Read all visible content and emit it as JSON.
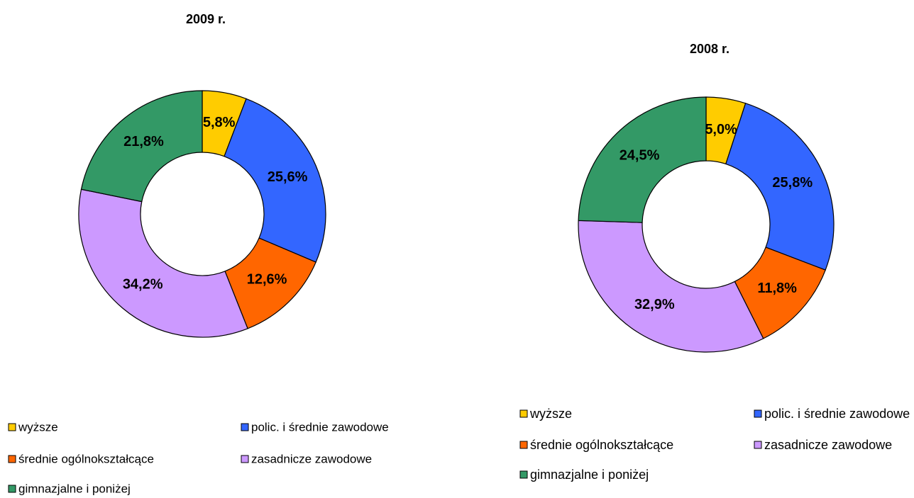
{
  "chart_data": [
    {
      "type": "donut",
      "title": "2009 r.",
      "categories": [
        "wyższe",
        "polic. i średnie zawodowe",
        "średnie ogólnokształcące",
        "zasadnicze zawodowe",
        "gimnazjalne i poniżej"
      ],
      "values": [
        5.8,
        25.6,
        12.6,
        34.2,
        21.8
      ],
      "value_labels": [
        "5,8%",
        "25,6%",
        "12,6%",
        "34,2%",
        "21,8%"
      ],
      "colors": [
        "#ffcc00",
        "#3366ff",
        "#ff6600",
        "#cc99ff",
        "#339966"
      ]
    },
    {
      "type": "donut",
      "title": "2008 r.",
      "categories": [
        "wyższe",
        "polic. i średnie zawodowe",
        "średnie ogólnokształcące",
        "zasadnicze zawodowe",
        "gimnazjalne i poniżej"
      ],
      "values": [
        5.0,
        25.8,
        11.8,
        32.9,
        24.5
      ],
      "value_labels": [
        "5,0%",
        "25,8%",
        "11,8%",
        "32,9%",
        "24,5%"
      ],
      "colors": [
        "#ffcc00",
        "#3366ff",
        "#ff6600",
        "#cc99ff",
        "#339966"
      ]
    }
  ]
}
